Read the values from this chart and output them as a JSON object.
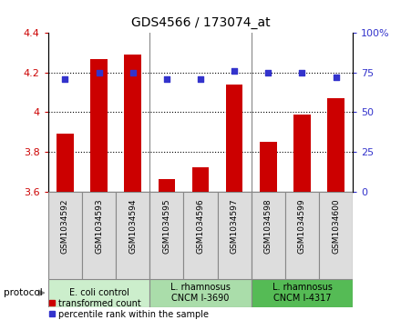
{
  "title": "GDS4566 / 173074_at",
  "categories": [
    "GSM1034592",
    "GSM1034593",
    "GSM1034594",
    "GSM1034595",
    "GSM1034596",
    "GSM1034597",
    "GSM1034598",
    "GSM1034599",
    "GSM1034600"
  ],
  "bar_values": [
    3.89,
    4.27,
    4.29,
    3.66,
    3.72,
    4.14,
    3.85,
    3.99,
    4.07
  ],
  "dot_values": [
    71,
    75,
    75,
    71,
    71,
    76,
    75,
    75,
    72
  ],
  "bar_color": "#cc0000",
  "dot_color": "#3333cc",
  "ylim_left": [
    3.6,
    4.4
  ],
  "ylim_right": [
    0,
    100
  ],
  "yticks_left": [
    3.6,
    3.8,
    4.0,
    4.2,
    4.4
  ],
  "yticks_right": [
    0,
    25,
    50,
    75,
    100
  ],
  "groups": [
    {
      "label": "E. coli control",
      "start": 0,
      "end": 3,
      "color": "#cceecc"
    },
    {
      "label": "L. rhamnosus\nCNCM I-3690",
      "start": 3,
      "end": 6,
      "color": "#aaddaa"
    },
    {
      "label": "L. rhamnosus\nCNCM I-4317",
      "start": 6,
      "end": 9,
      "color": "#55bb55"
    }
  ],
  "legend_items": [
    {
      "label": "transformed count",
      "color": "#cc0000"
    },
    {
      "label": "percentile rank within the sample",
      "color": "#3333cc"
    }
  ],
  "bar_width": 0.5,
  "dot_size": 25,
  "label_bg_color": "#dddddd",
  "figsize": [
    4.4,
    3.63
  ],
  "dpi": 100
}
